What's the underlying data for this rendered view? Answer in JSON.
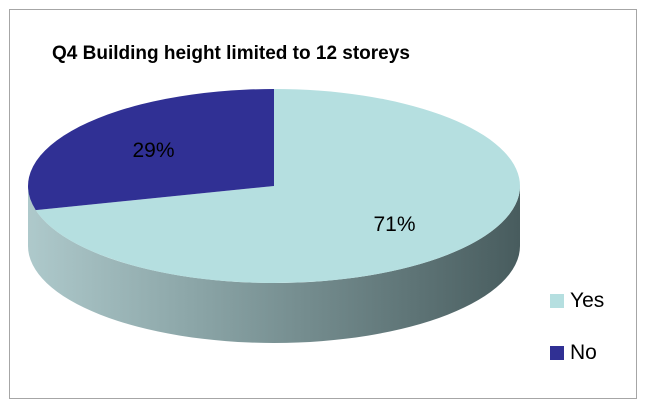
{
  "chart_data": {
    "type": "pie",
    "title": "Q4 Building height limited to 12 storeys",
    "categories": [
      "Yes",
      "No"
    ],
    "values": [
      71,
      29
    ],
    "labels": [
      "71%",
      "29%"
    ],
    "colors": [
      "#b5dfe0",
      "#303094"
    ],
    "legend_position": "right"
  }
}
